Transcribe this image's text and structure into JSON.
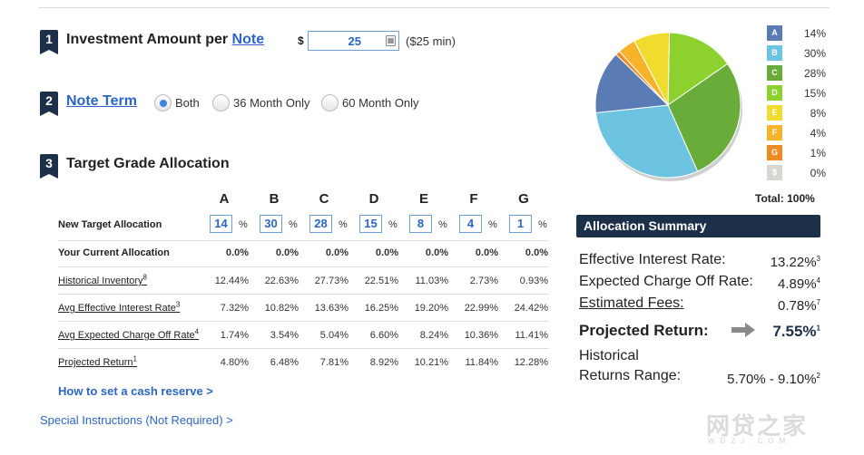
{
  "steps": {
    "s1": {
      "number": "1",
      "title": "Investment Amount per ",
      "title_link": "Note"
    },
    "s2": {
      "number": "2",
      "title_link": "Note Term"
    },
    "s3": {
      "number": "3",
      "title": "Target Grade Allocation"
    }
  },
  "investment": {
    "currency": "$",
    "value": "25",
    "min_note": "($25 min)",
    "calc_icon": "calculator-icon"
  },
  "term_options": [
    {
      "label": "Both",
      "selected": true
    },
    {
      "label": "36 Month Only",
      "selected": false
    },
    {
      "label": "60 Month Only",
      "selected": false
    }
  ],
  "grades": [
    "A",
    "B",
    "C",
    "D",
    "E",
    "F",
    "G"
  ],
  "table": {
    "new_target_label": "New Target Allocation",
    "new_target_values": [
      "14",
      "30",
      "28",
      "15",
      "8",
      "4",
      "1"
    ],
    "pct_sign": "%",
    "current_label": "Your Current Allocation",
    "current_values": [
      "0.0%",
      "0.0%",
      "0.0%",
      "0.0%",
      "0.0%",
      "0.0%",
      "0.0%"
    ],
    "rows": [
      {
        "label": "Historical Inventory",
        "sup": "8",
        "values": [
          "12.44%",
          "22.63%",
          "27.73%",
          "22.51%",
          "11.03%",
          "2.73%",
          "0.93%"
        ]
      },
      {
        "label": "Avg Effective Interest Rate",
        "sup": "3",
        "values": [
          "7.32%",
          "10.82%",
          "13.63%",
          "16.25%",
          "19.20%",
          "22.99%",
          "24.42%"
        ]
      },
      {
        "label": "Avg Expected Charge Off Rate",
        "sup": "4",
        "values": [
          "1.74%",
          "3.54%",
          "5.04%",
          "6.60%",
          "8.24%",
          "10.36%",
          "11.41%"
        ]
      },
      {
        "label": "Projected Return",
        "sup": "1",
        "values": [
          "4.80%",
          "6.48%",
          "7.81%",
          "8.92%",
          "10.21%",
          "11.84%",
          "12.28%"
        ]
      }
    ]
  },
  "links": {
    "cash_reserve": "How to set a cash reserve >",
    "special_instructions": "Special Instructions (Not Required) >"
  },
  "legend": [
    {
      "grade": "A",
      "pct": "14%",
      "color": "#5b7bb5"
    },
    {
      "grade": "B",
      "pct": "30%",
      "color": "#6cc4e0"
    },
    {
      "grade": "C",
      "pct": "28%",
      "color": "#6aac3a"
    },
    {
      "grade": "D",
      "pct": "15%",
      "color": "#8dd12e"
    },
    {
      "grade": "E",
      "pct": "8%",
      "color": "#f0dc2e"
    },
    {
      "grade": "F",
      "pct": "4%",
      "color": "#f7b42b"
    },
    {
      "grade": "G",
      "pct": "1%",
      "color": "#f08a22"
    },
    {
      "grade": "$",
      "pct": "0%",
      "color": "#d8d8d0"
    }
  ],
  "total_label": "Total: 100%",
  "chart_data": {
    "type": "pie",
    "categories": [
      "A",
      "B",
      "C",
      "D",
      "E",
      "F",
      "G",
      "$"
    ],
    "values": [
      14,
      30,
      28,
      15,
      8,
      4,
      1,
      0
    ]
  },
  "summary": {
    "title": "Allocation Summary",
    "effective_rate_label": "Effective Interest Rate:",
    "effective_rate_value": "13.22%",
    "effective_rate_sup": "3",
    "charge_off_label": "Expected Charge Off Rate:",
    "charge_off_value": "4.89%",
    "charge_off_sup": "4",
    "fees_label": "Estimated Fees:",
    "fees_value": "0.78%",
    "fees_sup": "7",
    "projected_label": "Projected Return:",
    "projected_value": "7.55%",
    "projected_sup": "1",
    "hist_label_1": "Historical",
    "hist_label_2": "Returns Range:",
    "hist_value": "5.70% - 9.10%",
    "hist_sup": "2"
  },
  "watermark": {
    "main": "网贷之家",
    "sub": "WDZJ.COM"
  }
}
